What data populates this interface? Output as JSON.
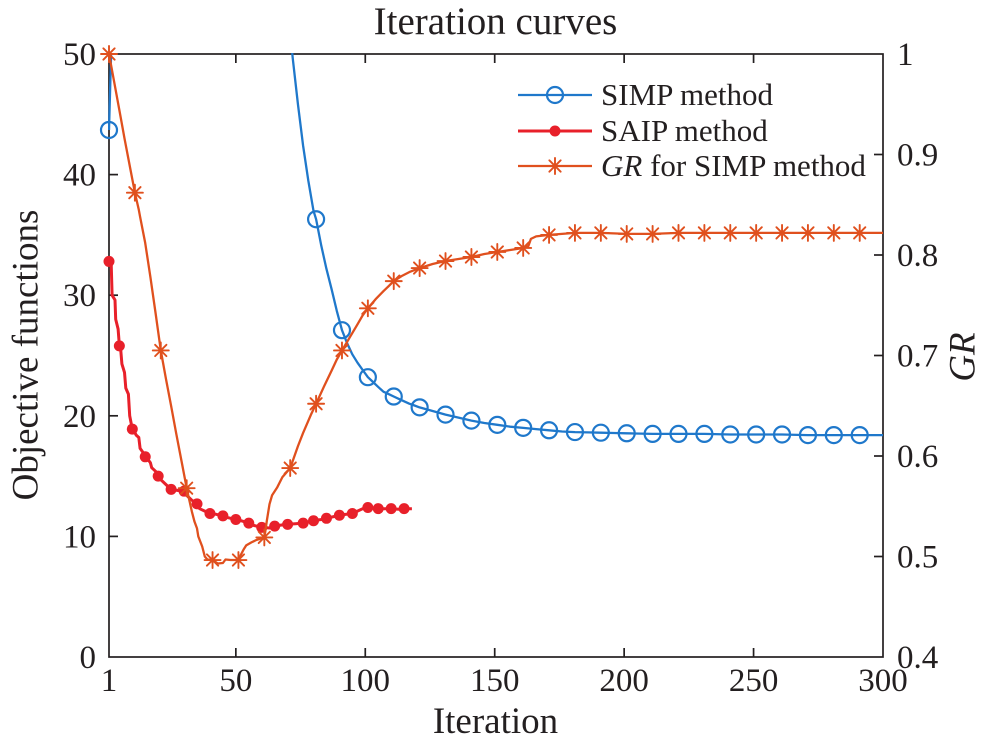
{
  "title": "Iteration curves",
  "chart_data": {
    "type": "line",
    "title": "Iteration curves",
    "grid": false,
    "x_axis": {
      "label": "Iteration",
      "min": 1,
      "max": 300,
      "ticks": [
        1,
        50,
        100,
        150,
        200,
        250,
        300
      ]
    },
    "y_left": {
      "label": "Objective functions",
      "min": 0,
      "max": 50,
      "ticks": [
        0,
        10,
        20,
        30,
        40,
        50
      ]
    },
    "y_right": {
      "label": "GR",
      "min": 0.4,
      "max": 1,
      "italic": true,
      "ticks": [
        0.4,
        0.5,
        0.6,
        0.7,
        0.8,
        0.9,
        1
      ]
    },
    "legend_position": "top-right-inside",
    "axis_color": "#231f20",
    "series": [
      {
        "name": "SIMP method",
        "label_parts": [
          {
            "text": "SIMP method",
            "italic": false
          }
        ],
        "axis": "left",
        "color": "#1f78cb",
        "marker": "open-circle",
        "line_width": 2.3,
        "line": [
          [
            1,
            43.7
          ],
          [
            1.8,
            50
          ],
          [
            2.5,
            58
          ],
          [
            68,
            58
          ],
          [
            70,
            54
          ],
          [
            72,
            49.6
          ],
          [
            74,
            45.8
          ],
          [
            76,
            42.4
          ],
          [
            78,
            39.5
          ],
          [
            80,
            37.0
          ],
          [
            81,
            36.3
          ],
          [
            83,
            34.1
          ],
          [
            85,
            32.2
          ],
          [
            87,
            30.5
          ],
          [
            89,
            28.7
          ],
          [
            91,
            27.1
          ],
          [
            93,
            26.0
          ],
          [
            95,
            25.1
          ],
          [
            97,
            24.4
          ],
          [
            99,
            23.8
          ],
          [
            101,
            23.2
          ],
          [
            103,
            22.8
          ],
          [
            105,
            22.4
          ],
          [
            107,
            22.0
          ],
          [
            109,
            21.8
          ],
          [
            111,
            21.6
          ],
          [
            113,
            21.4
          ],
          [
            115,
            21.2
          ],
          [
            117,
            21.0
          ],
          [
            119,
            20.85
          ],
          [
            121,
            20.7
          ],
          [
            126,
            20.4
          ],
          [
            131,
            20.1
          ],
          [
            136,
            19.85
          ],
          [
            141,
            19.6
          ],
          [
            146,
            19.4
          ],
          [
            151,
            19.25
          ],
          [
            156,
            19.1
          ],
          [
            161,
            19.0
          ],
          [
            166,
            18.9
          ],
          [
            171,
            18.8
          ],
          [
            176,
            18.7
          ],
          [
            181,
            18.65
          ],
          [
            186,
            18.62
          ],
          [
            191,
            18.6
          ],
          [
            196,
            18.57
          ],
          [
            201,
            18.55
          ],
          [
            211,
            18.5
          ],
          [
            221,
            18.5
          ],
          [
            231,
            18.5
          ],
          [
            241,
            18.45
          ],
          [
            251,
            18.45
          ],
          [
            261,
            18.45
          ],
          [
            271,
            18.4
          ],
          [
            281,
            18.4
          ],
          [
            291,
            18.4
          ],
          [
            300,
            18.4
          ]
        ],
        "markers": [
          [
            1,
            43.7
          ],
          [
            81,
            36.3
          ],
          [
            91,
            27.1
          ],
          [
            101,
            23.2
          ],
          [
            111,
            21.6
          ],
          [
            121,
            20.7
          ],
          [
            131,
            20.1
          ],
          [
            141,
            19.6
          ],
          [
            151,
            19.25
          ],
          [
            161,
            19.0
          ],
          [
            171,
            18.8
          ],
          [
            181,
            18.65
          ],
          [
            191,
            18.6
          ],
          [
            201,
            18.55
          ],
          [
            211,
            18.5
          ],
          [
            221,
            18.5
          ],
          [
            231,
            18.5
          ],
          [
            241,
            18.45
          ],
          [
            251,
            18.45
          ],
          [
            261,
            18.45
          ],
          [
            271,
            18.4
          ],
          [
            281,
            18.4
          ],
          [
            291,
            18.4
          ]
        ]
      },
      {
        "name": "SAIP method",
        "label_parts": [
          {
            "text": "SAIP method",
            "italic": false
          }
        ],
        "axis": "left",
        "color": "#e8202a",
        "marker": "filled-circle",
        "line_width": 3,
        "line": [
          [
            1,
            32.8
          ],
          [
            1.8,
            32.9
          ],
          [
            2.2,
            30.0
          ],
          [
            3.3,
            29.6
          ],
          [
            3.6,
            28.0
          ],
          [
            4.5,
            27.2
          ],
          [
            5,
            25.8
          ],
          [
            5.5,
            25.6
          ],
          [
            6,
            24.3
          ],
          [
            7,
            23.6
          ],
          [
            7.5,
            22.3
          ],
          [
            8.5,
            21.8
          ],
          [
            9,
            20.0
          ],
          [
            10,
            18.9
          ],
          [
            11,
            18.6
          ],
          [
            11.5,
            18.4
          ],
          [
            12.5,
            18.2
          ],
          [
            13,
            17.3
          ],
          [
            14,
            17.0
          ],
          [
            15,
            16.6
          ],
          [
            16,
            16.4
          ],
          [
            17,
            16.1
          ],
          [
            17.5,
            15.7
          ],
          [
            19,
            15.4
          ],
          [
            20,
            15.0
          ],
          [
            21,
            14.7
          ],
          [
            22,
            14.5
          ],
          [
            23,
            14.3
          ],
          [
            24,
            14.1
          ],
          [
            25,
            13.9
          ],
          [
            26.5,
            13.85
          ],
          [
            28,
            13.8
          ],
          [
            30,
            13.75
          ],
          [
            31,
            13.4
          ],
          [
            33,
            13.0
          ],
          [
            35,
            12.7
          ],
          [
            36,
            12.3
          ],
          [
            38,
            12.1
          ],
          [
            40,
            11.9
          ],
          [
            42,
            11.85
          ],
          [
            45,
            11.7
          ],
          [
            47,
            11.55
          ],
          [
            50,
            11.4
          ],
          [
            52,
            11.3
          ],
          [
            55,
            11.1
          ],
          [
            57,
            10.9
          ],
          [
            60,
            10.75
          ],
          [
            63,
            10.7
          ],
          [
            65,
            10.85
          ],
          [
            68,
            10.95
          ],
          [
            70,
            11.0
          ],
          [
            73,
            11.05
          ],
          [
            76,
            11.1
          ],
          [
            78,
            11.2
          ],
          [
            80,
            11.3
          ],
          [
            83,
            11.4
          ],
          [
            85,
            11.5
          ],
          [
            88,
            11.65
          ],
          [
            90,
            11.75
          ],
          [
            93,
            11.85
          ],
          [
            95,
            11.9
          ],
          [
            97,
            12.1
          ],
          [
            99,
            12.3
          ],
          [
            101,
            12.4
          ],
          [
            103,
            12.35
          ],
          [
            105,
            12.3
          ],
          [
            108,
            12.3
          ],
          [
            110,
            12.3
          ],
          [
            113,
            12.25
          ],
          [
            115,
            12.3
          ],
          [
            118,
            12.3
          ]
        ],
        "markers": [
          [
            1,
            32.8
          ],
          [
            5,
            25.8
          ],
          [
            10,
            18.9
          ],
          [
            15,
            16.6
          ],
          [
            20,
            15.0
          ],
          [
            25,
            13.9
          ],
          [
            30,
            13.75
          ],
          [
            35,
            12.7
          ],
          [
            40,
            11.9
          ],
          [
            45,
            11.7
          ],
          [
            50,
            11.4
          ],
          [
            55,
            11.1
          ],
          [
            60,
            10.75
          ],
          [
            65,
            10.85
          ],
          [
            70,
            11.0
          ],
          [
            76,
            11.1
          ],
          [
            80,
            11.3
          ],
          [
            85,
            11.5
          ],
          [
            90,
            11.75
          ],
          [
            95,
            11.9
          ],
          [
            101,
            12.4
          ],
          [
            105,
            12.3
          ],
          [
            110,
            12.3
          ],
          [
            115,
            12.3
          ]
        ]
      },
      {
        "name": "GR for SIMP method",
        "label_parts": [
          {
            "text": "GR",
            "italic": true
          },
          {
            "text": " for SIMP method",
            "italic": false
          }
        ],
        "axis": "right",
        "color": "#e0501e",
        "marker": "asterisk",
        "line_width": 2.3,
        "line": [
          [
            1,
            1.0
          ],
          [
            3,
            0.972
          ],
          [
            5,
            0.944
          ],
          [
            7,
            0.916
          ],
          [
            9,
            0.889
          ],
          [
            11,
            0.862
          ],
          [
            12.5,
            0.845
          ],
          [
            13,
            0.838
          ],
          [
            15,
            0.812
          ],
          [
            17,
            0.778
          ],
          [
            19,
            0.742
          ],
          [
            21,
            0.705
          ],
          [
            23,
            0.677
          ],
          [
            25,
            0.65
          ],
          [
            27,
            0.622
          ],
          [
            29,
            0.595
          ],
          [
            31,
            0.568
          ],
          [
            33,
            0.545
          ],
          [
            34,
            0.535
          ],
          [
            35,
            0.528
          ],
          [
            35.5,
            0.52
          ],
          [
            37,
            0.51
          ],
          [
            38,
            0.5
          ],
          [
            39,
            0.497
          ],
          [
            41,
            0.4965
          ],
          [
            43,
            0.493
          ],
          [
            45,
            0.4935
          ],
          [
            46,
            0.497
          ],
          [
            48,
            0.4965
          ],
          [
            51,
            0.4965
          ],
          [
            52,
            0.502
          ],
          [
            53,
            0.507
          ],
          [
            54,
            0.511
          ],
          [
            56,
            0.514
          ],
          [
            58,
            0.5165
          ],
          [
            61,
            0.519
          ],
          [
            61.5,
            0.527
          ],
          [
            62,
            0.536
          ],
          [
            63,
            0.552
          ],
          [
            64,
            0.561
          ],
          [
            66,
            0.569
          ],
          [
            68,
            0.579
          ],
          [
            71,
            0.588
          ],
          [
            74,
            0.61
          ],
          [
            76,
            0.623
          ],
          [
            79,
            0.641
          ],
          [
            81,
            0.652
          ],
          [
            84,
            0.669
          ],
          [
            87,
            0.685
          ],
          [
            89,
            0.696
          ],
          [
            91,
            0.705
          ],
          [
            94,
            0.718
          ],
          [
            97,
            0.731
          ],
          [
            99,
            0.74
          ],
          [
            101,
            0.747
          ],
          [
            104,
            0.756
          ],
          [
            107,
            0.764
          ],
          [
            109,
            0.769
          ],
          [
            111,
            0.774
          ],
          [
            114,
            0.779
          ],
          [
            117,
            0.783
          ],
          [
            121,
            0.787
          ],
          [
            126,
            0.791
          ],
          [
            131,
            0.794
          ],
          [
            136,
            0.796
          ],
          [
            141,
            0.798
          ],
          [
            146,
            0.801
          ],
          [
            151,
            0.803
          ],
          [
            156,
            0.805
          ],
          [
            161,
            0.807
          ],
          [
            163,
            0.809
          ],
          [
            164,
            0.816
          ],
          [
            166,
            0.8185
          ],
          [
            171,
            0.82
          ],
          [
            176,
            0.821
          ],
          [
            181,
            0.822
          ],
          [
            191,
            0.822
          ],
          [
            201,
            0.821
          ],
          [
            211,
            0.821
          ],
          [
            221,
            0.822
          ],
          [
            231,
            0.822
          ],
          [
            241,
            0.822
          ],
          [
            251,
            0.822
          ],
          [
            261,
            0.822
          ],
          [
            271,
            0.822
          ],
          [
            281,
            0.822
          ],
          [
            291,
            0.822
          ],
          [
            300,
            0.822
          ]
        ],
        "markers": [
          [
            1,
            1.0
          ],
          [
            11,
            0.862
          ],
          [
            21,
            0.705
          ],
          [
            31,
            0.568
          ],
          [
            41,
            0.4965
          ],
          [
            51,
            0.4965
          ],
          [
            61,
            0.519
          ],
          [
            71,
            0.588
          ],
          [
            81,
            0.652
          ],
          [
            91,
            0.705
          ],
          [
            101,
            0.747
          ],
          [
            111,
            0.774
          ],
          [
            121,
            0.787
          ],
          [
            131,
            0.794
          ],
          [
            141,
            0.798
          ],
          [
            151,
            0.803
          ],
          [
            161,
            0.807
          ],
          [
            171,
            0.82
          ],
          [
            181,
            0.822
          ],
          [
            191,
            0.822
          ],
          [
            201,
            0.821
          ],
          [
            211,
            0.821
          ],
          [
            221,
            0.822
          ],
          [
            231,
            0.822
          ],
          [
            241,
            0.822
          ],
          [
            251,
            0.822
          ],
          [
            261,
            0.822
          ],
          [
            271,
            0.822
          ],
          [
            281,
            0.822
          ],
          [
            291,
            0.822
          ]
        ]
      }
    ]
  }
}
